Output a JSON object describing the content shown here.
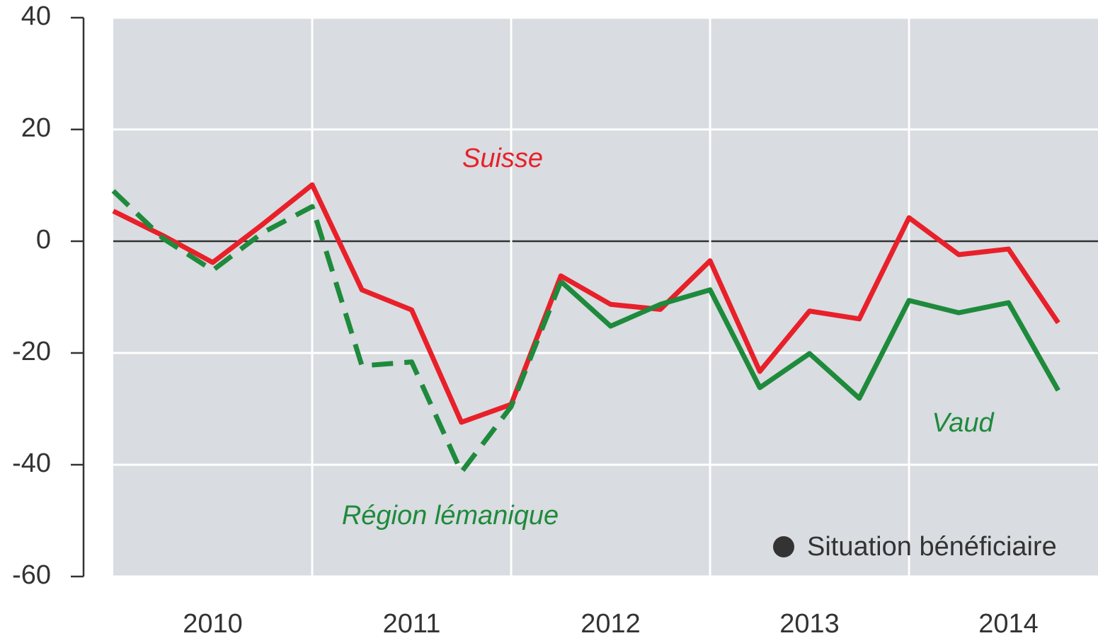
{
  "chart_data": {
    "type": "line",
    "x": [
      2010,
      2010.25,
      2010.5,
      2010.75,
      2011,
      2011.25,
      2011.5,
      2011.75,
      2012,
      2012.25,
      2012.5,
      2012.75,
      2013,
      2013.25,
      2013.5,
      2013.75,
      2014,
      2014.25,
      2014.5,
      2014.75
    ],
    "series": [
      {
        "name": "Suisse",
        "color": "#e8202a",
        "dash": false,
        "values": [
          5.4,
          1,
          -3.8,
          3,
          10.1,
          -8.7,
          -12.3,
          -32.4,
          -29.2,
          -6.2,
          -11.3,
          -12.2,
          -3.5,
          -23.3,
          -12.5,
          -13.9,
          4.2,
          -2.4,
          -1.4,
          -14.6
        ]
      },
      {
        "name": "Région lémanique",
        "color": "#1e8a3c",
        "dash": true,
        "values": [
          9,
          0.5,
          -5.2,
          1.5,
          6.2,
          -22.3,
          -21.6,
          -41.3,
          -29.6,
          -7.2,
          null,
          null,
          null,
          null,
          null,
          null,
          null,
          null,
          null,
          null
        ]
      },
      {
        "name": "Vaud",
        "color": "#1e8a3c",
        "dash": false,
        "values": [
          null,
          null,
          null,
          null,
          null,
          null,
          null,
          null,
          null,
          -7.2,
          -15.2,
          -11.3,
          -8.7,
          -26.2,
          -20.1,
          -28.1,
          -10.6,
          -12.8,
          -11,
          -26.7
        ]
      }
    ],
    "xlim": [
      2010,
      2014.95
    ],
    "xticks": [
      {
        "value": 2010.5,
        "label": "2010"
      },
      {
        "value": 2011.5,
        "label": "2011"
      },
      {
        "value": 2012.5,
        "label": "2012"
      },
      {
        "value": 2013.5,
        "label": "2013"
      },
      {
        "value": 2014.5,
        "label": "2014"
      }
    ],
    "xgrid": [
      2011,
      2012,
      2013,
      2014
    ],
    "ylim": [
      -60,
      40
    ],
    "yticks": [
      -60,
      -40,
      -20,
      0,
      20,
      40
    ],
    "grid": true,
    "annotation": "Situation bénéficiaire"
  }
}
